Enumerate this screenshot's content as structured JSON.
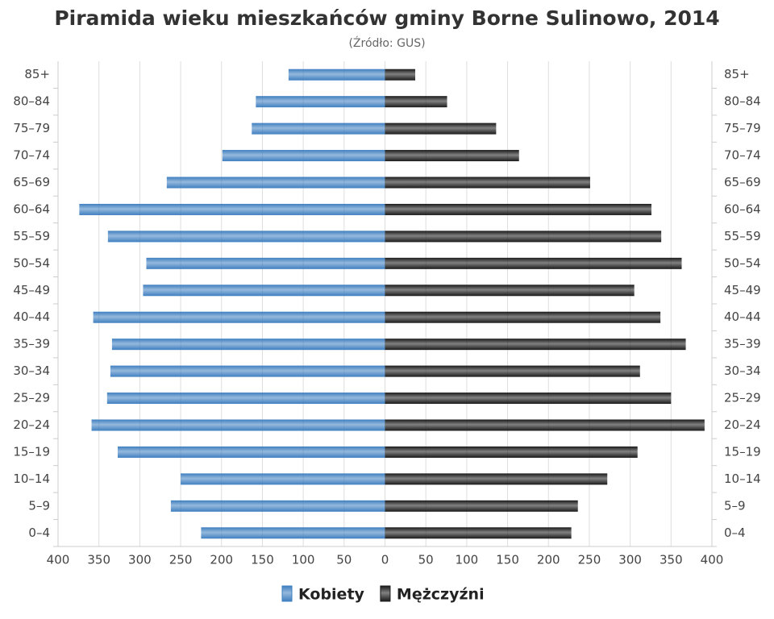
{
  "chart_data": {
    "type": "pyramid",
    "title": "Piramida wieku mieszkańców gminy Borne Sulinowo, 2014",
    "subtitle": "(Źródło: GUS)",
    "categories": [
      "0–4",
      "5–9",
      "10–14",
      "15–19",
      "20–24",
      "25–29",
      "30–34",
      "35–39",
      "40–44",
      "45–49",
      "50–54",
      "55–59",
      "60–64",
      "65–69",
      "70–74",
      "75–79",
      "80–84",
      "85+"
    ],
    "series": [
      {
        "name": "Kobiety",
        "color": "#3f7fc0",
        "side": "left",
        "values": [
          225,
          262,
          250,
          327,
          359,
          340,
          336,
          334,
          357,
          296,
          292,
          339,
          374,
          267,
          199,
          163,
          158,
          118
        ]
      },
      {
        "name": "Mężczyźni",
        "color": "#1a1a1a",
        "side": "right",
        "values": [
          228,
          236,
          272,
          309,
          391,
          350,
          312,
          368,
          337,
          305,
          363,
          338,
          326,
          251,
          164,
          136,
          76,
          37
        ]
      }
    ],
    "xlim": [
      -400,
      400
    ],
    "xticks": [
      {
        "value": -400,
        "label": "400"
      },
      {
        "value": -350,
        "label": "350"
      },
      {
        "value": -300,
        "label": "300"
      },
      {
        "value": -250,
        "label": "250"
      },
      {
        "value": -200,
        "label": "200"
      },
      {
        "value": -150,
        "label": "150"
      },
      {
        "value": -100,
        "label": "100"
      },
      {
        "value": -50,
        "label": "50"
      },
      0,
      50,
      100,
      150,
      200,
      250,
      300,
      350,
      400
    ],
    "grid": true
  }
}
